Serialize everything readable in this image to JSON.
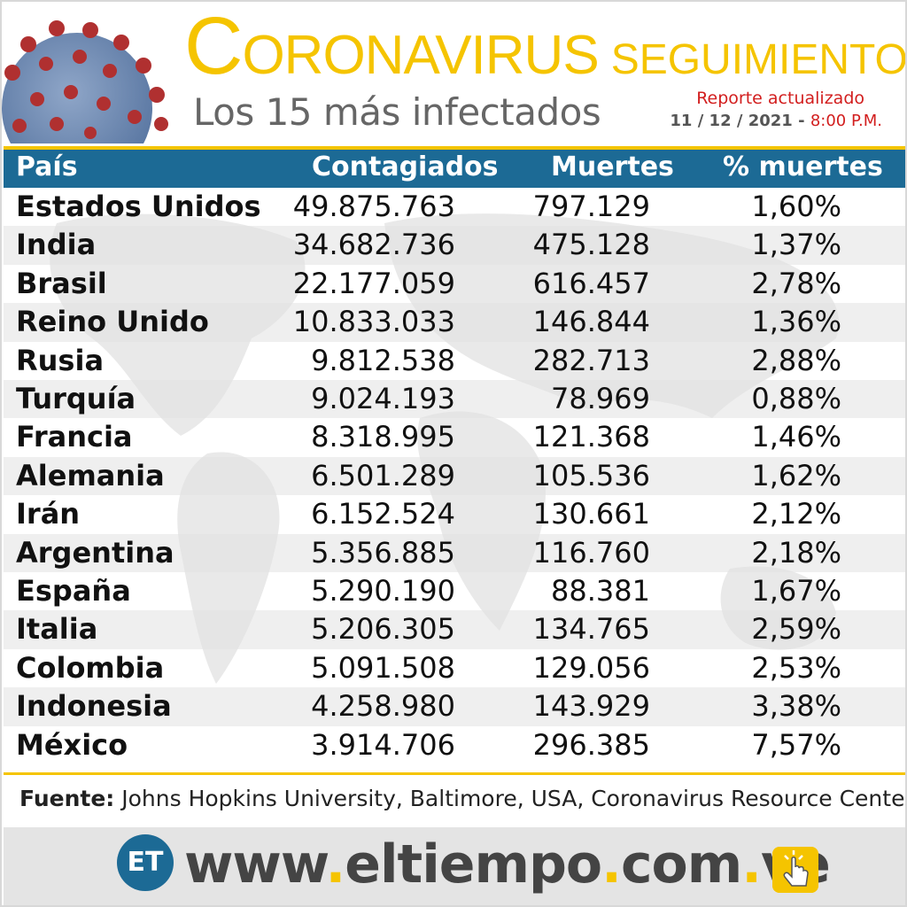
{
  "header": {
    "title_initial": "C",
    "title_rest": "ORONAVIRUS",
    "title_secondary": "SEGUIMIENTO",
    "subtitle": "Los 15 más infectados",
    "report_label": "Reporte actualizado",
    "report_date": "11 / 12 / 2021 -",
    "report_time": "8:00 P.M."
  },
  "colors": {
    "accent": "#f5c400",
    "header_bar": "#1c6a95",
    "report": "#d21e1e"
  },
  "chart_data": {
    "type": "table",
    "columns": [
      "País",
      "Contagiados",
      "Muertes",
      "% muertes"
    ],
    "rows": [
      [
        "Estados Unidos",
        "49.875.763",
        "797.129",
        "1,60%"
      ],
      [
        "India",
        "34.682.736",
        "475.128",
        "1,37%"
      ],
      [
        "Brasil",
        "22.177.059",
        "616.457",
        "2,78%"
      ],
      [
        "Reino Unido",
        "10.833.033",
        "146.844",
        "1,36%"
      ],
      [
        "Rusia",
        "9.812.538",
        "282.713",
        "2,88%"
      ],
      [
        "Turquía",
        "9.024.193",
        "78.969",
        "0,88%"
      ],
      [
        "Francia",
        "8.318.995",
        "121.368",
        "1,46%"
      ],
      [
        "Alemania",
        "6.501.289",
        "105.536",
        "1,62%"
      ],
      [
        "Irán",
        "6.152.524",
        "130.661",
        "2,12%"
      ],
      [
        "Argentina",
        "5.356.885",
        "116.760",
        "2,18%"
      ],
      [
        "España",
        "5.290.190",
        "88.381",
        "1,67%"
      ],
      [
        "Italia",
        "5.206.305",
        "134.765",
        "2,59%"
      ],
      [
        "Colombia",
        "5.091.508",
        "129.056",
        "2,53%"
      ],
      [
        "Indonesia",
        "4.258.980",
        "143.929",
        "3,38%"
      ],
      [
        "México",
        "3.914.706",
        "296.385",
        "7,57%"
      ]
    ]
  },
  "source": {
    "label": "Fuente:",
    "text": " Johns Hopkins University, Baltimore, USA, Coronavirus Resource Center"
  },
  "footer": {
    "logo_text": "ET",
    "site_parts": [
      "www",
      ".",
      "eltiempo",
      ".",
      "com",
      ".",
      "ve"
    ],
    "click_icon": "hand-click-icon"
  }
}
